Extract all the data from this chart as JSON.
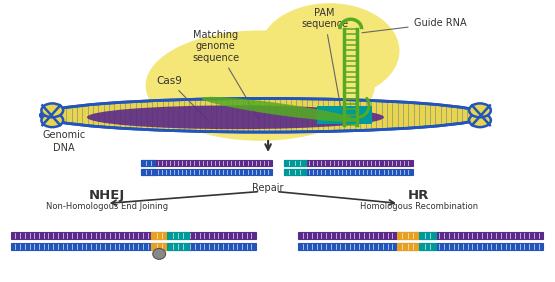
{
  "bg_color": "#ffffff",
  "labels": {
    "cas9": "Cas9",
    "genomic_dna": "Genomic\nDNA",
    "matching": "Matching\ngenome\nsequence",
    "pam": "PAM\nsequence",
    "guide_rna": "Guide RNA",
    "repair": "Repair",
    "nhej": "NHEJ",
    "nhej_sub": "Non-Homologous End Joining",
    "hr": "HR",
    "hr_sub": "Homologous Recombination"
  },
  "colors": {
    "dna_blue": "#2255bb",
    "dna_yellow": "#e8d44d",
    "dna_purple": "#5b2a8a",
    "dna_teal": "#009999",
    "guide_green": "#55aa22",
    "yellow_blob": "#f5e678",
    "orange_insert": "#e8a020",
    "gray_ball": "#888888",
    "arrow_color": "#333333",
    "text_color": "#333333"
  }
}
